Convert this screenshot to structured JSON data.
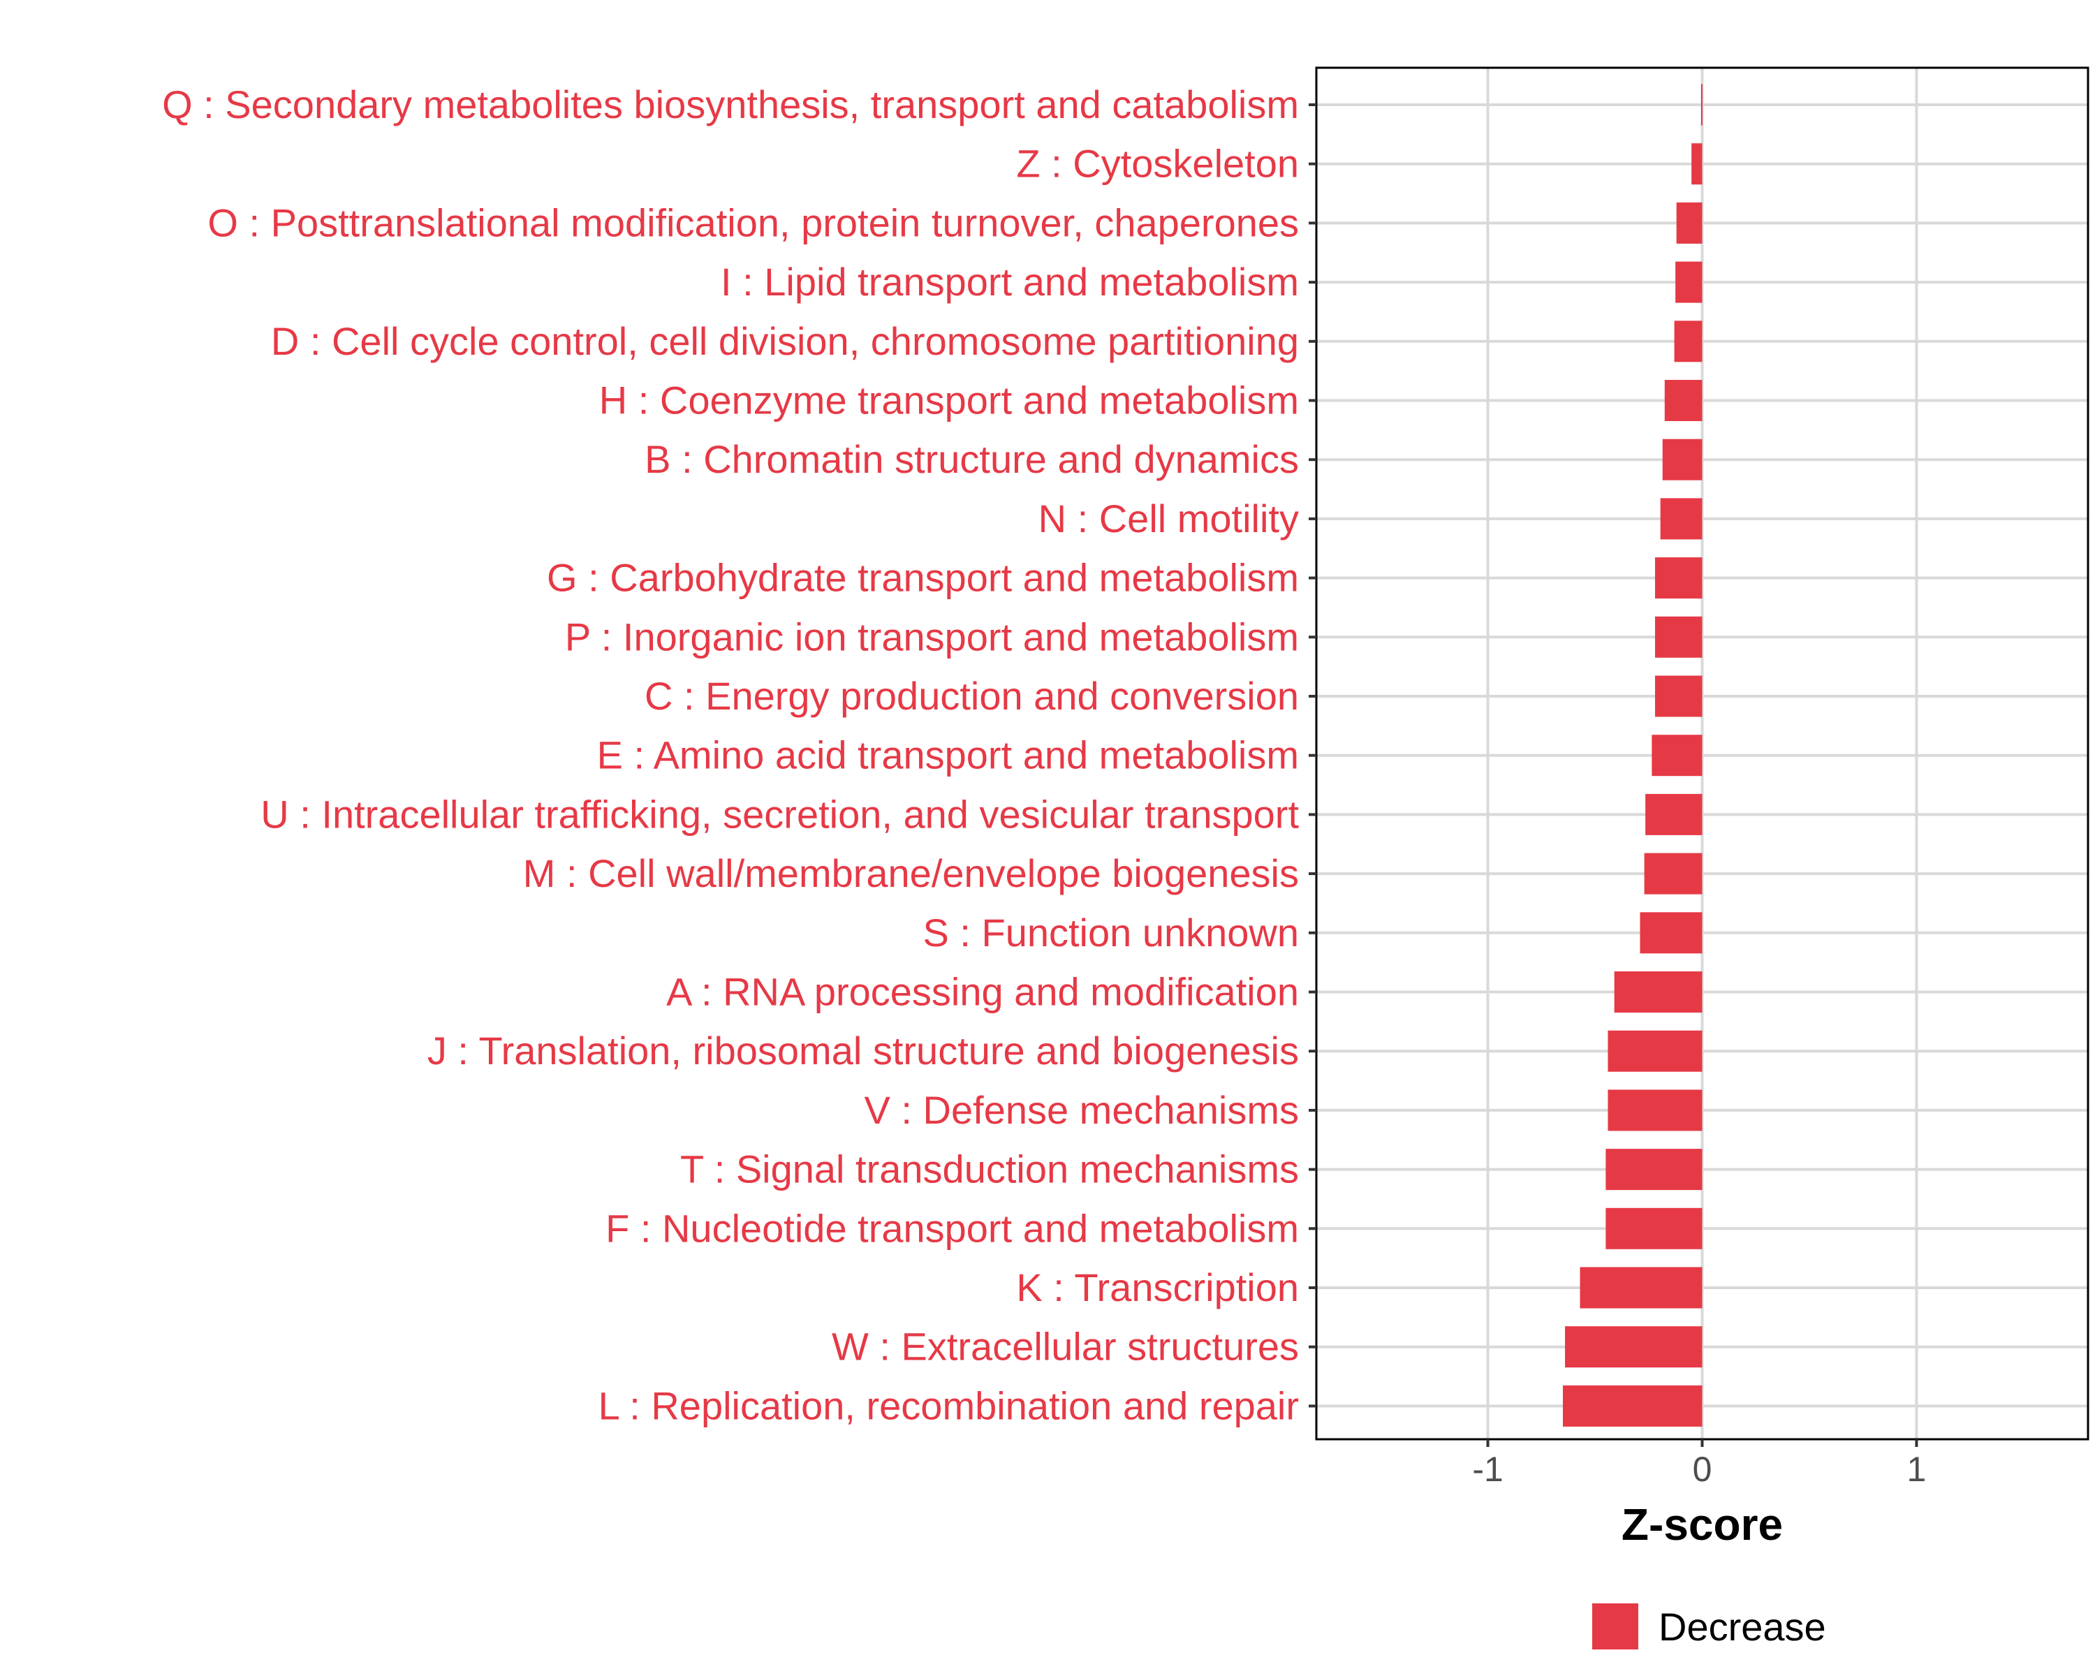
{
  "chart_data": {
    "type": "bar",
    "orientation": "horizontal",
    "categories": [
      "Q : Secondary metabolites biosynthesis, transport and catabolism",
      "Z : Cytoskeleton",
      "O : Posttranslational modification, protein turnover, chaperones",
      "I : Lipid transport and metabolism",
      "D : Cell cycle control, cell division, chromosome partitioning",
      "H : Coenzyme transport and metabolism",
      "B : Chromatin structure and dynamics",
      "N : Cell motility",
      "G : Carbohydrate transport and metabolism",
      "P : Inorganic ion transport and metabolism",
      "C : Energy production and conversion",
      "E : Amino acid transport and metabolism",
      "U : Intracellular trafficking, secretion, and vesicular transport",
      "M : Cell wall/membrane/envelope biogenesis",
      "S : Function unknown",
      "A : RNA processing and modification",
      "J : Translation, ribosomal structure and biogenesis",
      "V : Defense mechanisms",
      "T : Signal transduction mechanisms",
      "F : Nucleotide transport and metabolism",
      "K : Transcription",
      "W : Extracellular structures",
      "L : Replication, recombination and repair"
    ],
    "values": [
      -0.005,
      -0.05,
      -0.12,
      -0.125,
      -0.13,
      -0.175,
      -0.185,
      -0.195,
      -0.22,
      -0.22,
      -0.22,
      -0.235,
      -0.265,
      -0.27,
      -0.29,
      -0.41,
      -0.44,
      -0.44,
      -0.45,
      -0.45,
      -0.57,
      -0.64,
      -0.65
    ],
    "xlabel": "Z-score",
    "ylabel": "",
    "xlim": [
      -1.8,
      1.8
    ],
    "xticks": [
      -1,
      0,
      1
    ],
    "xtick_labels": [
      "-1",
      "0",
      "1"
    ],
    "grid": true,
    "legend": {
      "placement": "bottom",
      "entries": [
        {
          "name": "Decrease",
          "color": "#e63946"
        }
      ]
    },
    "colors": {
      "bar": "#e63946",
      "label": "#e63946",
      "grid": "#d9d9d9",
      "axis": "#000000"
    }
  }
}
